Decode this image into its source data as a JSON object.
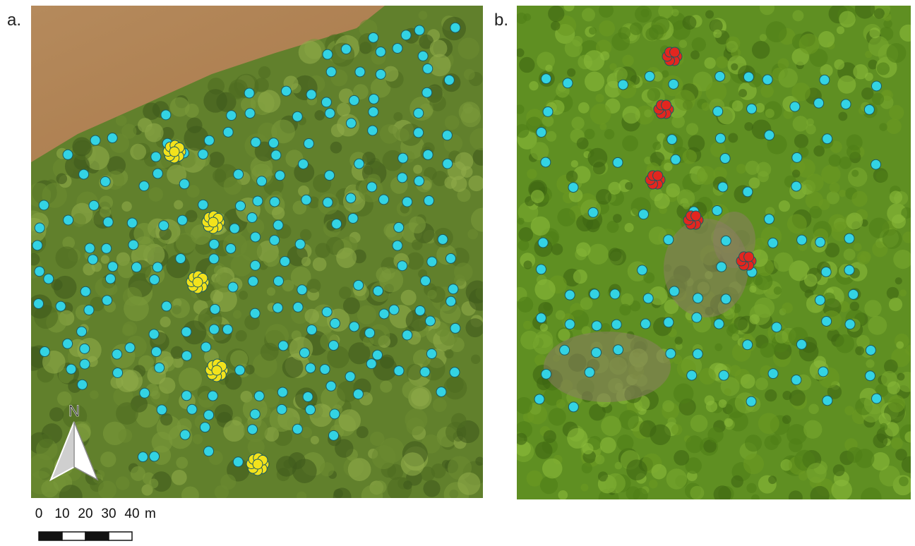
{
  "panels": [
    {
      "label": "a."
    },
    {
      "label": "b."
    }
  ],
  "north_arrow": {
    "label": "N"
  },
  "scale_bar": {
    "ticks": [
      0,
      10,
      20,
      30,
      40
    ],
    "unit": "m"
  }
}
